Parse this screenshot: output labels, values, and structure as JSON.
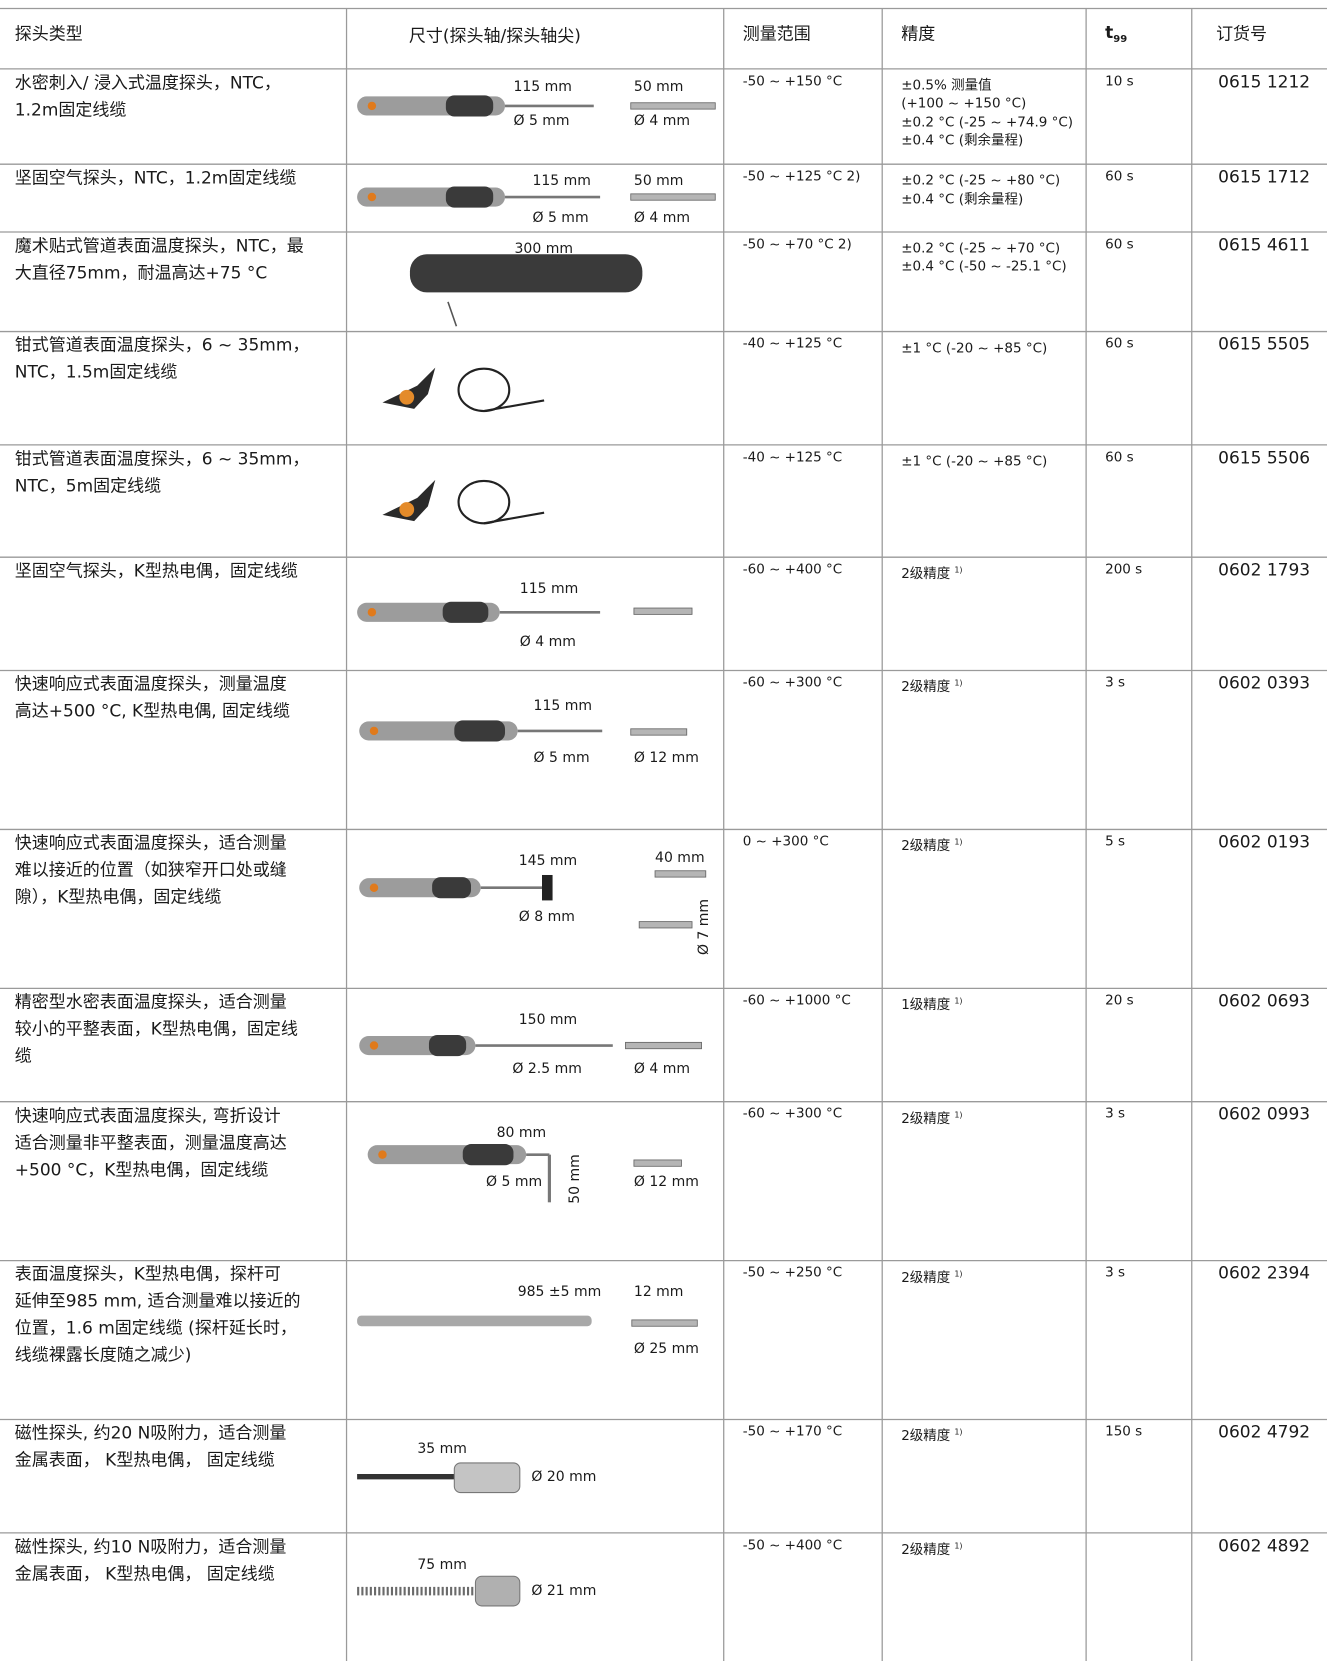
{
  "header": {
    "type": "探头类型",
    "dimensions": "尺寸(探头轴/探头轴尖)",
    "range": "测量范围",
    "accuracy": "精度",
    "t99": {
      "main": "t",
      "sub": "99"
    },
    "order": "订货号"
  },
  "rows": [
    {
      "type": [
        "水密刺入/ 浸入式温度探头，NTC，",
        "1.2m固定线缆"
      ],
      "dimensions": [
        "115 mm",
        "50 mm",
        "Ø 5 mm",
        "Ø 4 mm"
      ],
      "range": "-50 ~ +150  °C",
      "accuracy": [
        "±0.5% 测量值",
        "(+100 ~ +150 °C)",
        "±0.2 °C (-25 ~ +74.9  °C)",
        "±0.4 °C (剩余量程)"
      ],
      "t99": "10 s",
      "order": "0615 1212"
    },
    {
      "type": [
        "坚固空气探头，NTC，1.2m固定线缆"
      ],
      "dimensions": [
        "115 mm",
        "50 mm",
        "Ø 5 mm",
        "Ø 4 mm"
      ],
      "range": "-50 ~ +125 °C  2)",
      "accuracy": [
        "±0.2 °C (-25 ~ +80  °C)",
        "±0.4 °C (剩余量程)"
      ],
      "t99": "60 s",
      "order": "0615 1712"
    },
    {
      "type": [
        "魔术贴式管道表面温度探头，NTC，最",
        "大直径75mm，耐温高达+75 °C"
      ],
      "dimensions": [
        "300 mm"
      ],
      "range": "-50 ~ +70 °C  2)",
      "accuracy": [
        "±0.2 °C (-25 ~ +70  °C)",
        "±0.4 °C (-50 ~ -25.1  °C)"
      ],
      "t99": "60 s",
      "order": "0615 4611"
    },
    {
      "type": [
        "钳式管道表面温度探头，6 ~ 35mm，",
        "NTC，1.5m固定线缆"
      ],
      "dimensions": [],
      "range": "-40 ~ +125  °C",
      "accuracy": [
        "±1 °C (-20 ~ +85  °C)"
      ],
      "t99": "60 s",
      "order": "0615 5505"
    },
    {
      "type": [
        "钳式管道表面温度探头，6 ~ 35mm，",
        "NTC，5m固定线缆"
      ],
      "dimensions": [],
      "range": "-40 ~ +125  °C",
      "accuracy": [
        "±1 °C (-20 ~ +85  °C)"
      ],
      "t99": "60 s",
      "order": "0615 5506"
    },
    {
      "type": [
        "坚固空气探头，K型热电偶，固定线缆"
      ],
      "dimensions": [
        "115 mm",
        "Ø 4 mm"
      ],
      "range": "-60 ~ +400  °C",
      "accuracy": [
        "2级精度"
      ],
      "note": "1)",
      "t99": "200 s",
      "order": "0602 1793"
    },
    {
      "type": [
        "快速响应式表面温度探头，测量温度",
        "高达+500 °C, K型热电偶, 固定线缆"
      ],
      "dimensions": [
        "115 mm",
        "Ø 5 mm",
        "Ø 12 mm"
      ],
      "range": "-60 ~ +300  °C",
      "accuracy": [
        "2级精度"
      ],
      "note": "1)",
      "t99": "3 s",
      "order": "0602 0393"
    },
    {
      "type": [
        "快速响应式表面温度探头，适合测量",
        "难以接近的位置（如狭窄开口处或缝",
        "隙），K型热电偶，固定线缆"
      ],
      "dimensions": [
        "145 mm",
        "40 mm",
        "Ø 8 mm",
        "Ø 7 mm"
      ],
      "range": "0 ~ +300 °C",
      "accuracy": [
        "2级精度"
      ],
      "note": "1)",
      "t99": "5 s",
      "order": "0602 0193"
    },
    {
      "type": [
        "精密型水密表面温度探头，适合测量",
        "较小的平整表面，K型热电偶，固定线",
        "缆"
      ],
      "dimensions": [
        "150 mm",
        "Ø 2.5 mm",
        "Ø 4 mm"
      ],
      "range": "-60 ~ +1000  °C",
      "accuracy": [
        "1级精度"
      ],
      "note": "1)",
      "t99": "20 s",
      "order": "0602 0693"
    },
    {
      "type": [
        "快速响应式表面温度探头, 弯折设计",
        "适合测量非平整表面，测量温度高达",
        "+500 °C，K型热电偶，固定线缆"
      ],
      "dimensions": [
        "80 mm",
        "Ø 5 mm",
        "50 mm",
        "Ø 12 mm"
      ],
      "range": "-60 ~ +300  °C",
      "accuracy": [
        "2级精度"
      ],
      "note": "1)",
      "t99": "3 s",
      "order": "0602 0993"
    },
    {
      "type": [
        "表面温度探头，K型热电偶，探杆可",
        "延伸至985 mm, 适合测量难以接近的",
        "位置，1.6 m固定线缆 (探杆延长时，",
        "线缆裸露长度随之减少)"
      ],
      "dimensions": [
        "985 ±5 mm",
        "12 mm",
        "Ø 25 mm"
      ],
      "range": "-50 ~ +250  °C",
      "accuracy": [
        "2级精度"
      ],
      "note": "1)",
      "t99": "3 s",
      "order": "0602 2394"
    },
    {
      "type": [
        "磁性探头, 约20 N吸附力，适合测量",
        "金属表面， K型热电偶， 固定线缆"
      ],
      "dimensions": [
        "35 mm",
        "Ø 20 mm"
      ],
      "range": "-50 ~ +170  °C",
      "accuracy": [
        "2级精度"
      ],
      "note": "1)",
      "t99": "150 s",
      "order": "0602 4792"
    },
    {
      "type": [
        "磁性探头, 约10 N吸附力，适合测量",
        "金属表面， K型热电偶， 固定线缆"
      ],
      "dimensions": [
        "75 mm",
        "Ø 21 mm"
      ],
      "range": "-50 ~ +400  °C",
      "accuracy": [
        "2级精度"
      ],
      "note": "1)",
      "order": "0602 4892"
    }
  ]
}
